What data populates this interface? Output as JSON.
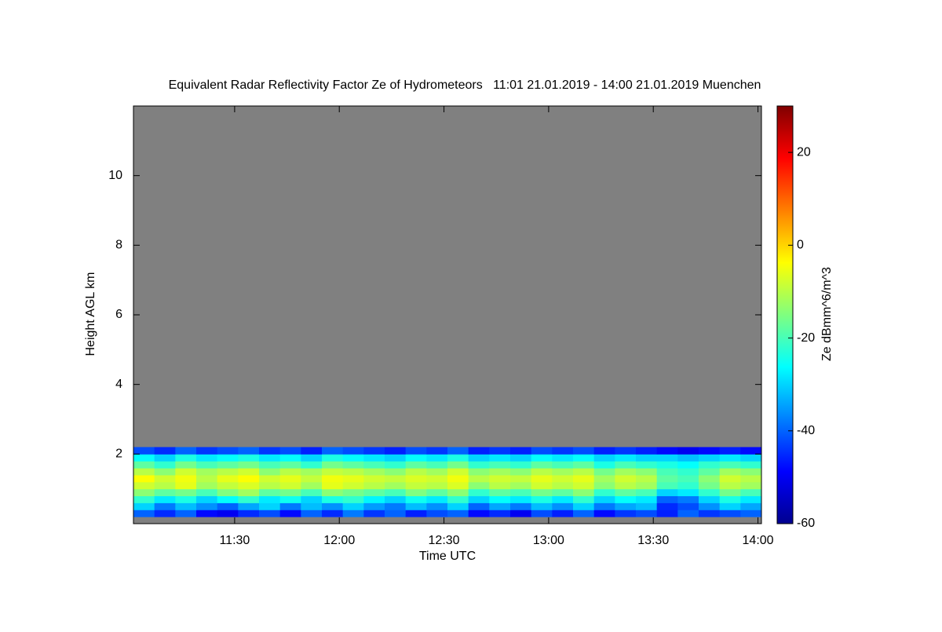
{
  "chart_data": {
    "type": "heatmap",
    "title": "Equivalent Radar Reflectivity Factor Ze of Hydrometeors   11:01 21.01.2019 - 14:00 21.01.2019 Muenchen",
    "x_label": "Time UTC",
    "y_label": "Height AGL km",
    "colorbar_label": "Ze dBmm^6/m^3",
    "xlim": [
      "11:01",
      "14:01"
    ],
    "xticks": [
      "11:30",
      "12:00",
      "12:30",
      "13:00",
      "13:30",
      "14:00"
    ],
    "ylim": [
      0,
      12
    ],
    "yticks": [
      2,
      4,
      6,
      8,
      10
    ],
    "clim": [
      -60,
      30
    ],
    "cticks": [
      -60,
      -40,
      -20,
      0,
      20
    ],
    "background_color": "#808080",
    "x": [
      "11:01",
      "11:07",
      "11:13",
      "11:19",
      "11:25",
      "11:31",
      "11:37",
      "11:43",
      "11:49",
      "11:55",
      "12:01",
      "12:07",
      "12:13",
      "12:19",
      "12:25",
      "12:31",
      "12:37",
      "12:43",
      "12:49",
      "12:55",
      "13:01",
      "13:07",
      "13:13",
      "13:19",
      "13:25",
      "13:31",
      "13:37",
      "13:43",
      "13:49",
      "13:55"
    ],
    "y": [
      0.3,
      0.5,
      0.7,
      0.9,
      1.1,
      1.3,
      1.5,
      1.7,
      1.9,
      2.1
    ],
    "z": [
      [
        -40,
        -45,
        -40,
        -48,
        -50,
        -45,
        -42,
        -48,
        -40,
        -45,
        -38,
        -44,
        -40,
        -46,
        -42,
        -40,
        -48,
        -45,
        -50,
        -42,
        -46,
        -40,
        -48,
        -44,
        -42,
        -46,
        -40,
        -44,
        -42,
        -40
      ],
      [
        -30,
        -38,
        -32,
        -36,
        -40,
        -34,
        -30,
        -38,
        -32,
        -36,
        -30,
        -35,
        -38,
        -32,
        -36,
        -30,
        -40,
        -34,
        -38,
        -32,
        -36,
        -30,
        -38,
        -34,
        -32,
        -45,
        -42,
        -36,
        -30,
        -34
      ],
      [
        -22,
        -28,
        -24,
        -30,
        -26,
        -22,
        -28,
        -25,
        -30,
        -24,
        -22,
        -27,
        -30,
        -25,
        -28,
        -22,
        -30,
        -26,
        -28,
        -24,
        -28,
        -22,
        -30,
        -26,
        -28,
        -40,
        -38,
        -30,
        -24,
        -28
      ],
      [
        -14,
        -18,
        -16,
        -20,
        -15,
        -12,
        -18,
        -16,
        -20,
        -14,
        -16,
        -18,
        -20,
        -15,
        -18,
        -14,
        -22,
        -18,
        -20,
        -16,
        -18,
        -14,
        -22,
        -18,
        -20,
        -30,
        -28,
        -22,
        -16,
        -20
      ],
      [
        -8,
        -10,
        -6,
        -12,
        -9,
        -7,
        -10,
        -8,
        -12,
        -6,
        -8,
        -10,
        -12,
        -9,
        -10,
        -7,
        -14,
        -10,
        -12,
        -8,
        -10,
        -8,
        -14,
        -10,
        -12,
        -20,
        -22,
        -16,
        -10,
        -12
      ],
      [
        -4,
        -8,
        -5,
        -10,
        -6,
        -4,
        -8,
        -6,
        -9,
        -5,
        -6,
        -8,
        -9,
        -7,
        -8,
        -5,
        -10,
        -8,
        -9,
        -6,
        -8,
        -6,
        -12,
        -8,
        -10,
        -18,
        -20,
        -14,
        -8,
        -10
      ],
      [
        -10,
        -14,
        -8,
        -12,
        -10,
        -8,
        -14,
        -10,
        -12,
        -9,
        -10,
        -12,
        -14,
        -10,
        -12,
        -8,
        -14,
        -12,
        -14,
        -10,
        -12,
        -10,
        -16,
        -12,
        -14,
        -20,
        -22,
        -18,
        -12,
        -14
      ],
      [
        -18,
        -22,
        -16,
        -20,
        -18,
        -16,
        -20,
        -18,
        -22,
        -16,
        -18,
        -20,
        -22,
        -18,
        -20,
        -16,
        -22,
        -20,
        -22,
        -18,
        -20,
        -18,
        -24,
        -20,
        -22,
        -24,
        -26,
        -22,
        -20,
        -22
      ],
      [
        -26,
        -30,
        -24,
        -28,
        -26,
        -24,
        -28,
        -26,
        -30,
        -24,
        -26,
        -28,
        -30,
        -26,
        -28,
        -24,
        -30,
        -28,
        -30,
        -26,
        -28,
        -26,
        -30,
        -28,
        -30,
        -30,
        -32,
        -30,
        -28,
        -30
      ],
      [
        -42,
        -45,
        -40,
        -44,
        -42,
        -40,
        -44,
        -42,
        -46,
        -40,
        -42,
        -44,
        -46,
        -42,
        -44,
        -40,
        -46,
        -44,
        -46,
        -42,
        -44,
        -42,
        -46,
        -44,
        -46,
        -48,
        -50,
        -48,
        -46,
        -48
      ]
    ]
  }
}
